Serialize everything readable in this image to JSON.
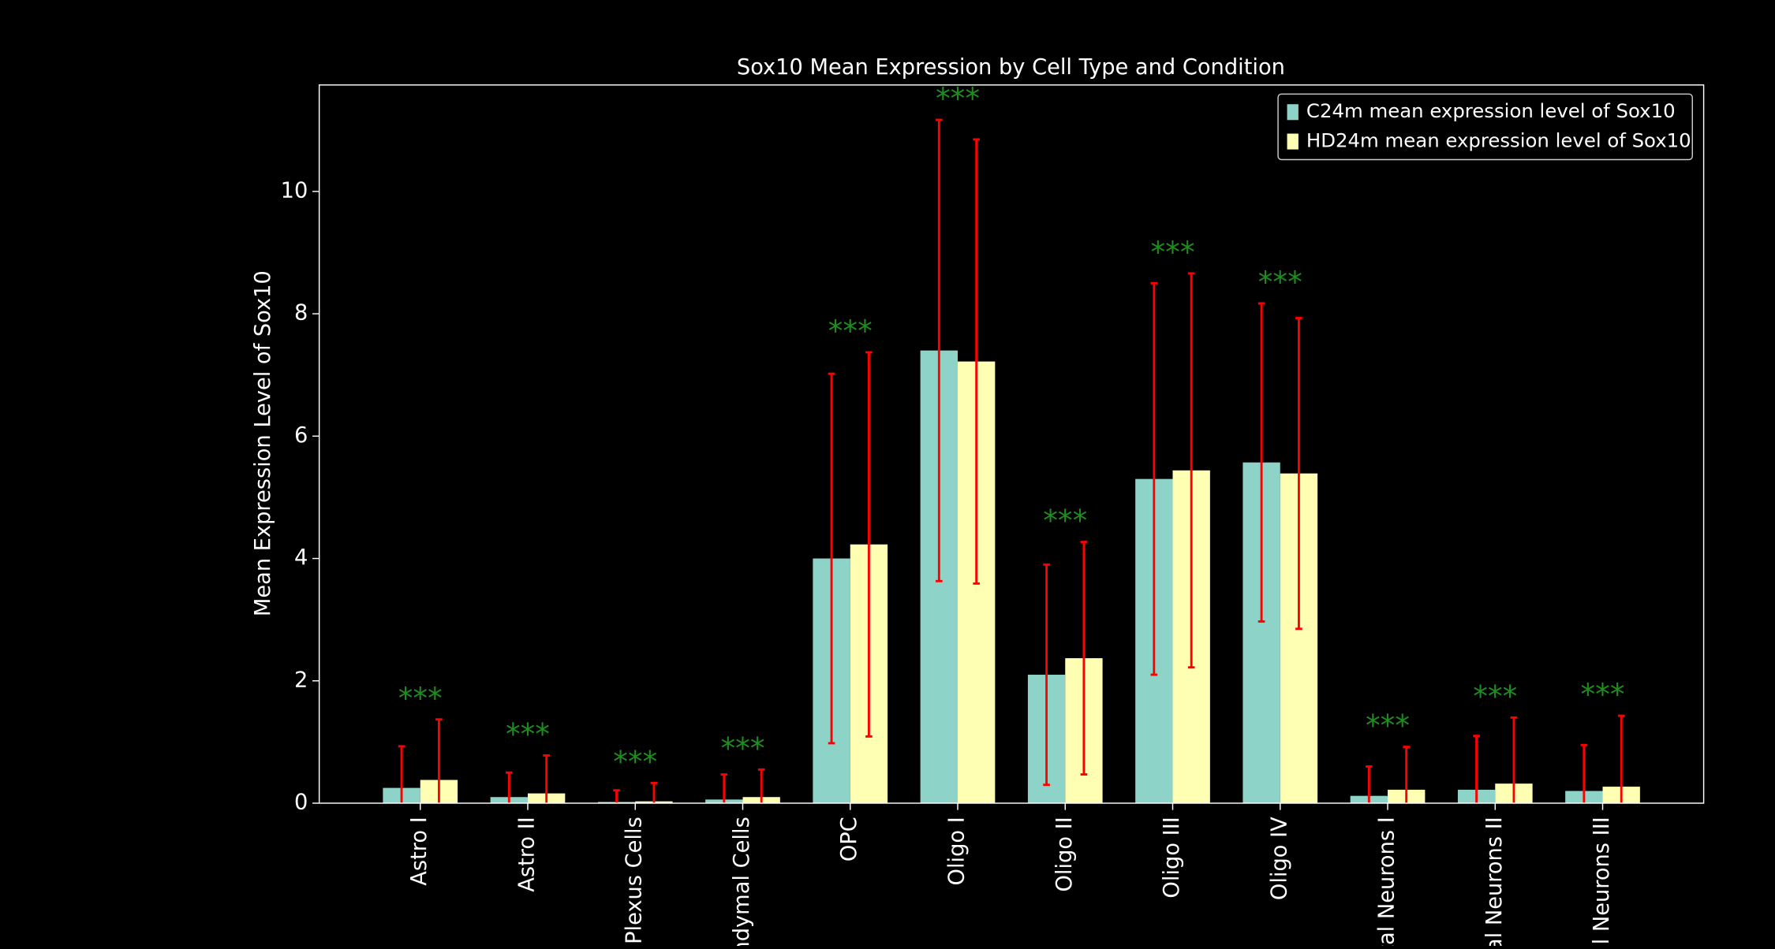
{
  "chart_data": {
    "type": "bar",
    "title": "Sox10 Mean Expression by Cell Type and Condition",
    "y_label": "Mean Expression Level of Sox10",
    "categories": [
      "Astro I",
      "Astro II",
      "Plexus Cells",
      "ndymal Cells",
      "OPC",
      "Oligo I",
      "Oligo II",
      "Oligo III",
      "Oligo IV",
      "tal Neurons I",
      "al Neurons II",
      "al Neurons III"
    ],
    "series": [
      {
        "name": "C24m mean expression level of Sox10",
        "color": "#8dd3c7",
        "values": [
          0.25,
          0.1,
          0.02,
          0.06,
          4.0,
          7.4,
          2.1,
          5.3,
          5.57,
          0.12,
          0.22,
          0.2
        ],
        "errors": [
          0.68,
          0.4,
          0.19,
          0.41,
          3.02,
          3.77,
          1.8,
          3.2,
          2.6,
          0.48,
          0.88,
          0.75
        ]
      },
      {
        "name": "HD24m mean expression level of Sox10",
        "color": "#ffffb3",
        "values": [
          0.38,
          0.16,
          0.03,
          0.1,
          4.23,
          7.22,
          2.37,
          5.44,
          5.39,
          0.22,
          0.32,
          0.27
        ],
        "errors": [
          0.99,
          0.62,
          0.3,
          0.45,
          3.14,
          3.63,
          1.9,
          3.22,
          2.54,
          0.7,
          1.08,
          1.16
        ]
      }
    ],
    "error_color": "#ff0000",
    "significance": [
      "***",
      "***",
      "***",
      "***",
      "***",
      "***",
      "***",
      "***",
      "***",
      "***",
      "***",
      "***"
    ],
    "significance_color": "#1e8c1e",
    "ylim": [
      0,
      11.74
    ],
    "yticks": [
      0,
      2,
      4,
      6,
      8,
      10
    ],
    "legend": "upper right"
  }
}
